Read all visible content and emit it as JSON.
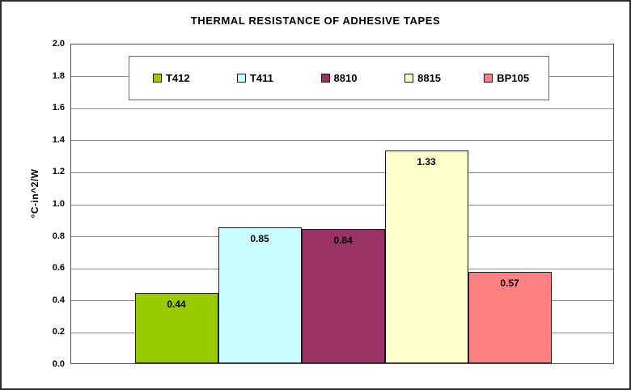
{
  "chart_data": {
    "type": "bar",
    "title": "THERMAL RESISTANCE OF ADHESIVE TAPES",
    "xlabel": "",
    "ylabel": "°C-in^2/W",
    "categories": [
      "T412",
      "T411",
      "8810",
      "8815",
      "BP105"
    ],
    "values": [
      0.44,
      0.85,
      0.84,
      1.33,
      0.57
    ],
    "value_labels": [
      "0.44",
      "0.85",
      "0.84",
      "1.33",
      "0.57"
    ],
    "colors": [
      "#99CC00",
      "#CCFFFF",
      "#993366",
      "#FFFFCC",
      "#FF8080"
    ],
    "ylim": [
      0.0,
      2.0
    ],
    "ytick_step": 0.2,
    "ytick_labels": [
      "0.0",
      "0.2",
      "0.4",
      "0.6",
      "0.8",
      "1.0",
      "1.2",
      "1.4",
      "1.6",
      "1.8",
      "2.0"
    ],
    "grid": "horizontal",
    "legend_position": "top-inside"
  },
  "style": {
    "frame_border": "#2e2e2e",
    "plot_border": "#4d4d4d",
    "grid_color": "#8c8c8c",
    "bar_border": "#1a1a1a",
    "legend_border": "#6b6b6b",
    "background": "#FFFFFF",
    "text_color": "#000000"
  }
}
